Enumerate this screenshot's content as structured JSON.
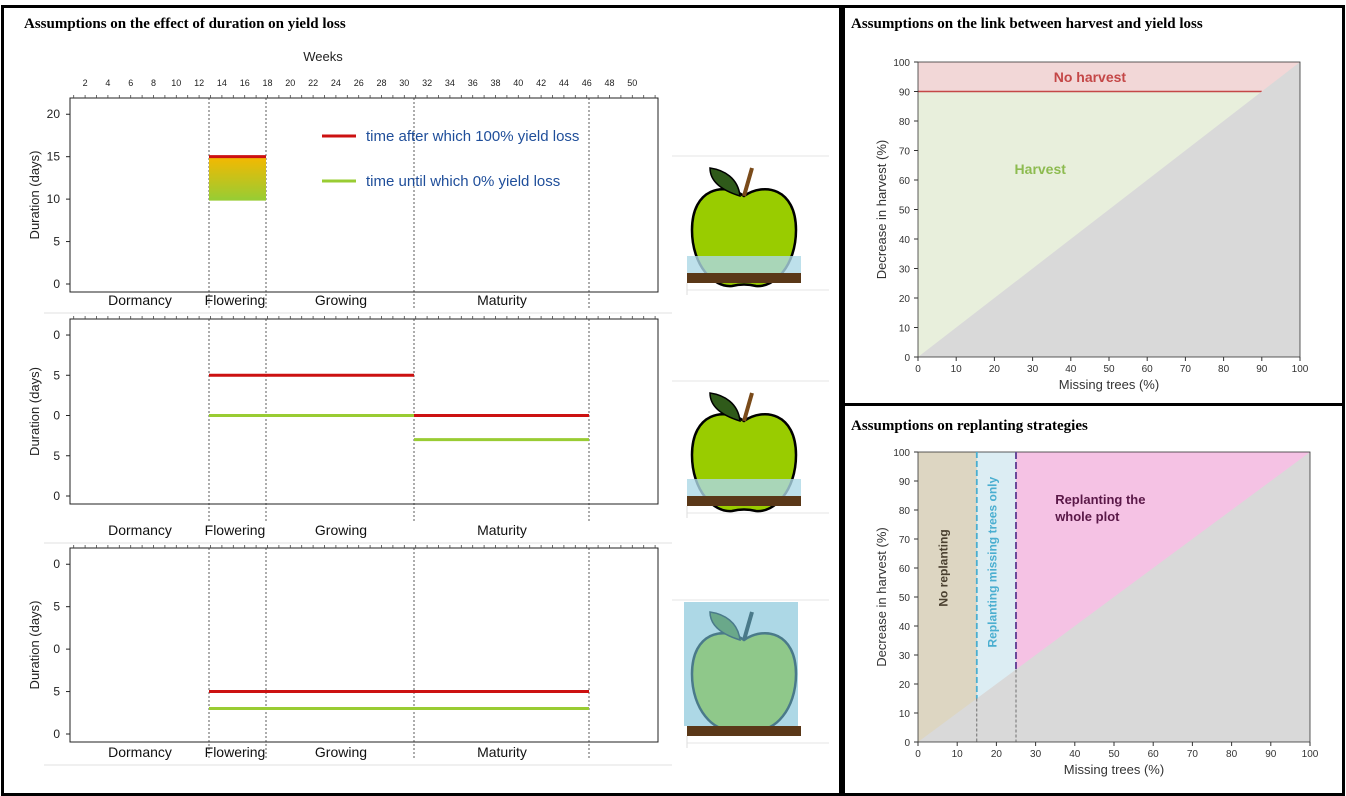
{
  "left_panel": {
    "title": "Assumptions on the effect of duration on yield loss",
    "top_axis": {
      "title": "Weeks",
      "ticks": [
        "2",
        "4",
        "6",
        "8",
        "10",
        "12",
        "14",
        "16",
        "18",
        "20",
        "22",
        "24",
        "26",
        "28",
        "30",
        "32",
        "34",
        "36",
        "38",
        "40",
        "42",
        "44",
        "46",
        "48",
        "50"
      ]
    },
    "y_label": "Duration (days)",
    "y_ticks": [
      "0",
      "5",
      "10",
      "15",
      "20"
    ],
    "phases": [
      "Dormancy",
      "Flowering",
      "Growing",
      "Maturity"
    ],
    "legend": {
      "red_label": "time after which 100% yield loss",
      "green_label": "time until which 0% yield loss"
    },
    "colors": {
      "red": "#cc1111",
      "green": "#99cc33",
      "water": "#add8e6",
      "soil": "#5a3818",
      "apple": "#99cc00"
    }
  },
  "chart_data": [
    {
      "type": "line",
      "x_unit": "weeks",
      "y_unit": "days",
      "phase_boundaries_weeks": [
        13,
        18,
        31,
        46
      ],
      "series": [
        {
          "color": "red",
          "segments": [
            {
              "x": [
                13,
                18
              ],
              "y": 15
            }
          ]
        },
        {
          "color": "green",
          "segments": [
            {
              "x": [
                13,
                18
              ],
              "y": 10
            }
          ]
        }
      ],
      "ylim": [
        0,
        21
      ]
    },
    {
      "type": "line",
      "x_unit": "weeks",
      "y_unit": "days",
      "series": [
        {
          "color": "red",
          "segments": [
            {
              "x": [
                13,
                31
              ],
              "y": 15
            },
            {
              "x": [
                31,
                46
              ],
              "y": 10
            }
          ]
        },
        {
          "color": "green",
          "segments": [
            {
              "x": [
                13,
                31
              ],
              "y": 10
            },
            {
              "x": [
                31,
                46
              ],
              "y": 7
            }
          ]
        }
      ],
      "ylim": [
        0,
        21
      ]
    },
    {
      "type": "line",
      "x_unit": "weeks",
      "y_unit": "days",
      "series": [
        {
          "color": "red",
          "segments": [
            {
              "x": [
                13,
                46
              ],
              "y": 5
            }
          ]
        },
        {
          "color": "green",
          "segments": [
            {
              "x": [
                13,
                46
              ],
              "y": 3
            }
          ]
        }
      ],
      "ylim": [
        0,
        21
      ]
    },
    {
      "type": "area",
      "title": "Assumptions on the link between harvest and yield loss",
      "xlabel": "Missing trees (%)",
      "ylabel": "Decrease in harvest (%)",
      "xlim": [
        0,
        100
      ],
      "ylim": [
        0,
        100
      ],
      "x_ticks": [
        "0",
        "10",
        "20",
        "30",
        "40",
        "50",
        "60",
        "70",
        "80",
        "90",
        "100"
      ],
      "y_ticks": [
        "0",
        "10",
        "20",
        "30",
        "40",
        "50",
        "60",
        "70",
        "80",
        "90",
        "100"
      ],
      "threshold_y": 90,
      "regions": [
        {
          "label": "No harvest",
          "color": "#f2d7d7",
          "label_color": "#c44747"
        },
        {
          "label": "Harvest",
          "color": "#e8efdc",
          "label_color": "#8dbb50"
        }
      ],
      "lower_triangle_color": "#d9d9d9"
    },
    {
      "type": "area",
      "title": "Assumptions on  replanting strategies",
      "xlabel": "Missing trees (%)",
      "ylabel": "Decrease in harvest  (%)",
      "xlim": [
        0,
        100
      ],
      "ylim": [
        0,
        100
      ],
      "x_ticks": [
        "0",
        "10",
        "20",
        "30",
        "40",
        "50",
        "60",
        "70",
        "80",
        "90",
        "100"
      ],
      "y_ticks": [
        "0",
        "10",
        "20",
        "30",
        "40",
        "50",
        "60",
        "70",
        "80",
        "90",
        "100"
      ],
      "boundaries_x": [
        15,
        25
      ],
      "regions": [
        {
          "label": "No replanting",
          "color": "#ddd6c2",
          "label_color": "#4a4030"
        },
        {
          "label": "Replanting missing trees only",
          "color": "#dcedf3",
          "label_color": "#4aaed0"
        },
        {
          "label": "Replanting the whole plot",
          "color": "#f5c2e4",
          "label_color": "#5a1848"
        }
      ],
      "lower_triangle_color": "#d9d9d9"
    }
  ],
  "right_top_panel": {
    "title": "Assumptions on the link between harvest and yield loss"
  },
  "right_bottom_panel": {
    "title": "Assumptions on  replanting strategies"
  }
}
